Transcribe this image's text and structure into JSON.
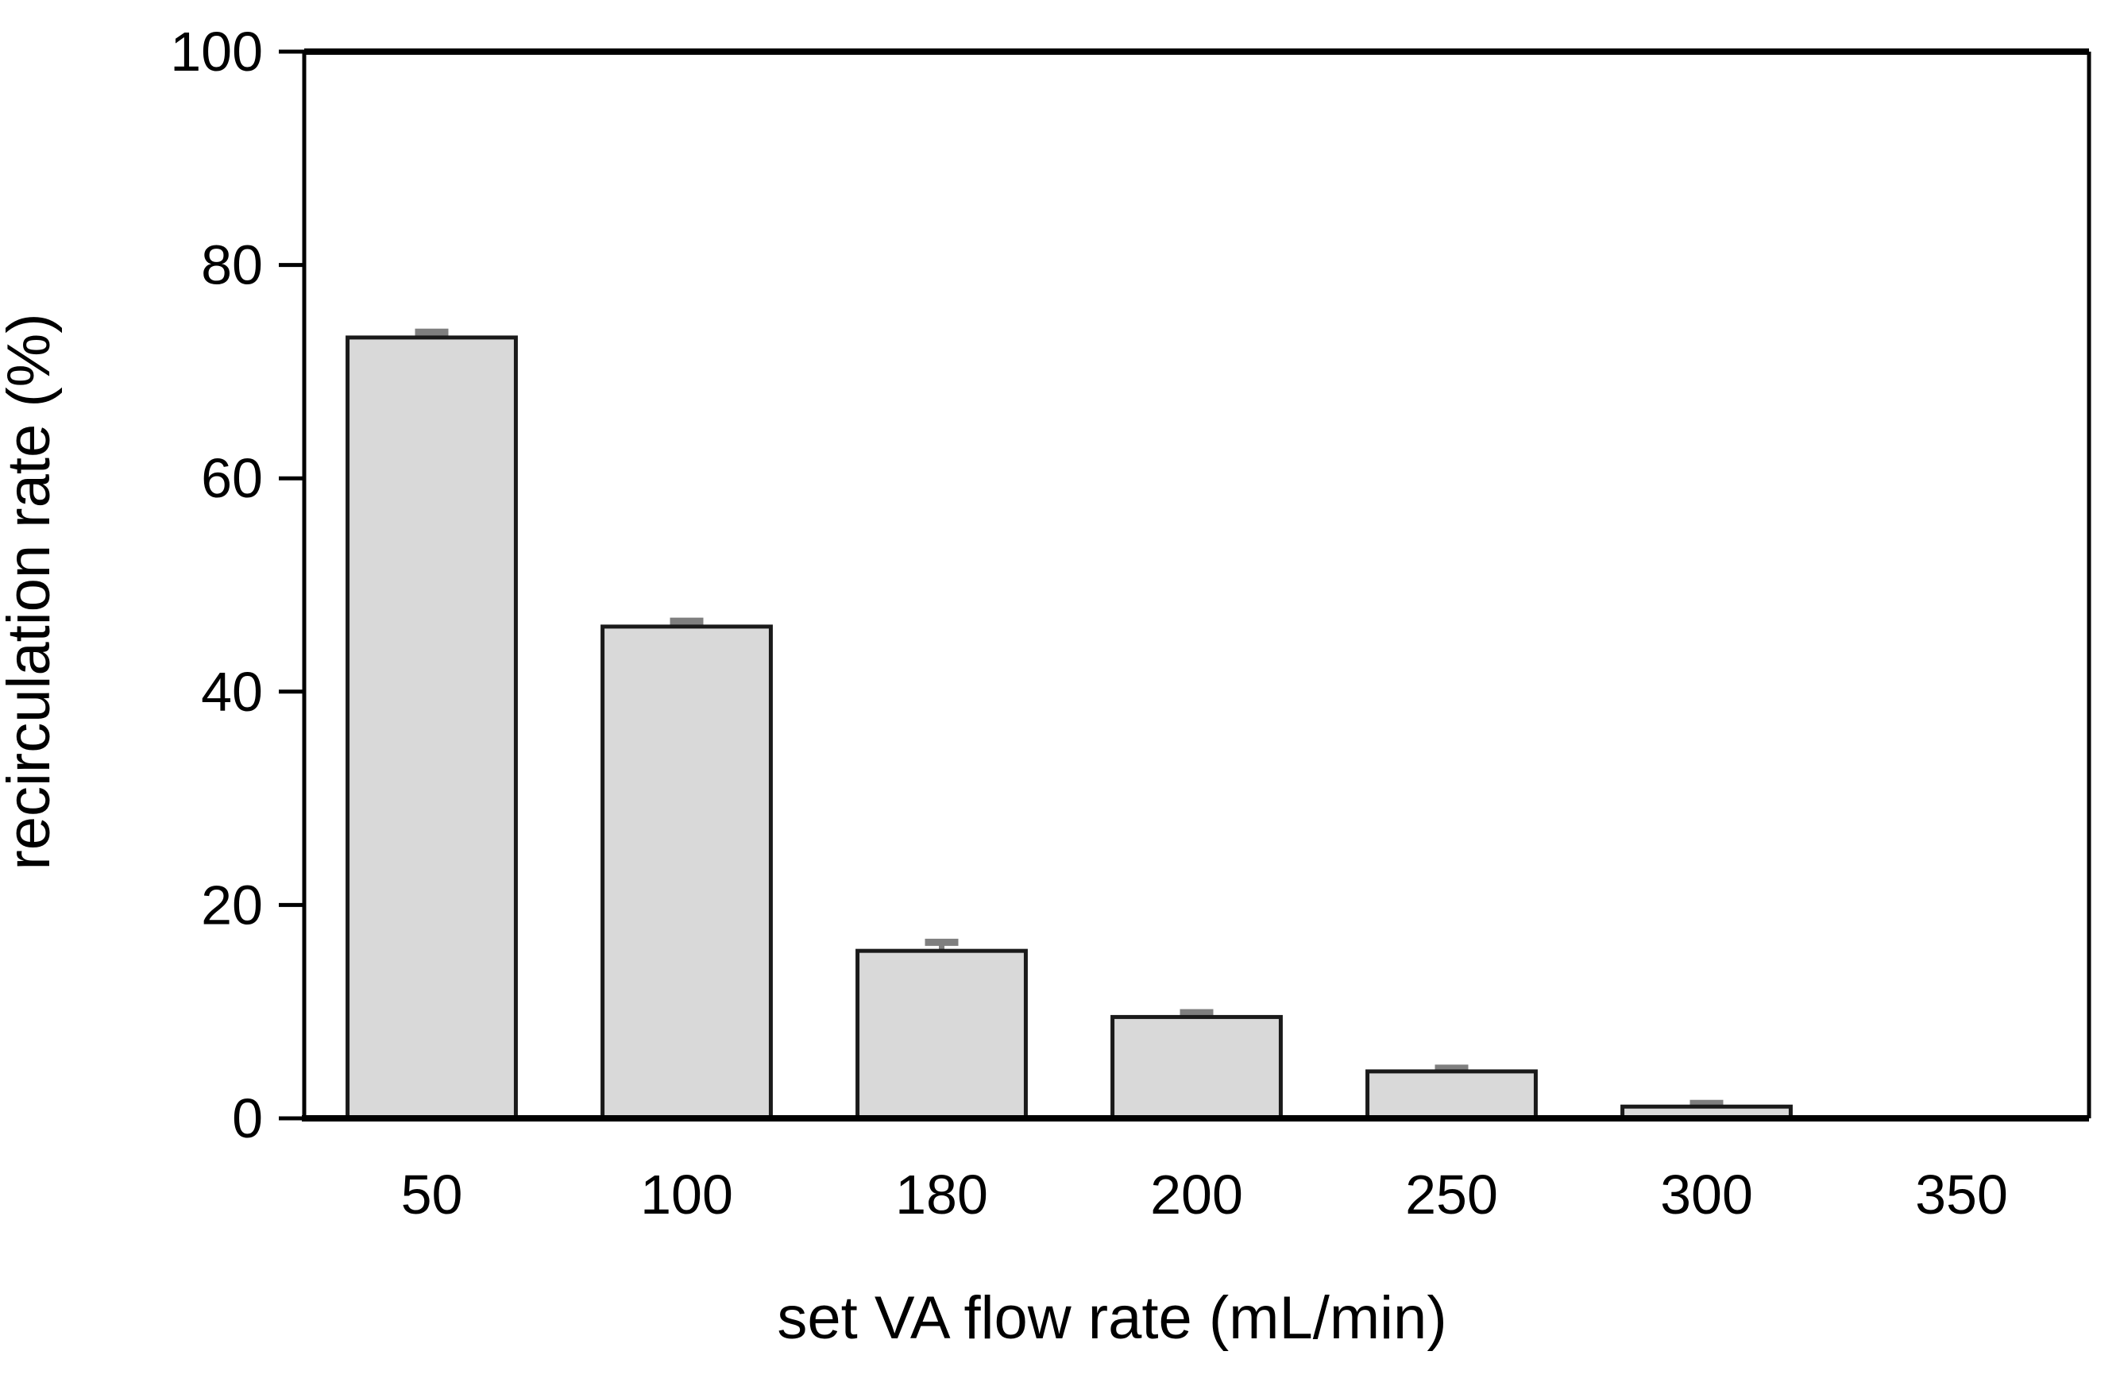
{
  "chart_data": {
    "type": "bar",
    "title": "",
    "xlabel": "set VA flow rate (mL/min)",
    "ylabel": "recirculation rate (%)",
    "categories": [
      "50",
      "100",
      "180",
      "200",
      "250",
      "300",
      "350"
    ],
    "series": [
      {
        "name": "recirculation rate",
        "values": [
          73.2,
          46.1,
          15.7,
          9.5,
          4.4,
          1.1,
          0
        ],
        "error_plus": [
          0.5,
          0.5,
          0.8,
          0.4,
          0.3,
          0.3,
          0
        ]
      }
    ],
    "ylim": [
      0,
      100
    ],
    "yticks": [
      "0",
      "20",
      "40",
      "60",
      "80",
      "100"
    ],
    "grid": "off",
    "legend": "none",
    "colors": {
      "bar_fill": "#d9d9d9",
      "bar_stroke": "#1a1a1a",
      "error_bar": "#7f7f7f",
      "axis": "#000000",
      "background": "#ffffff"
    }
  }
}
